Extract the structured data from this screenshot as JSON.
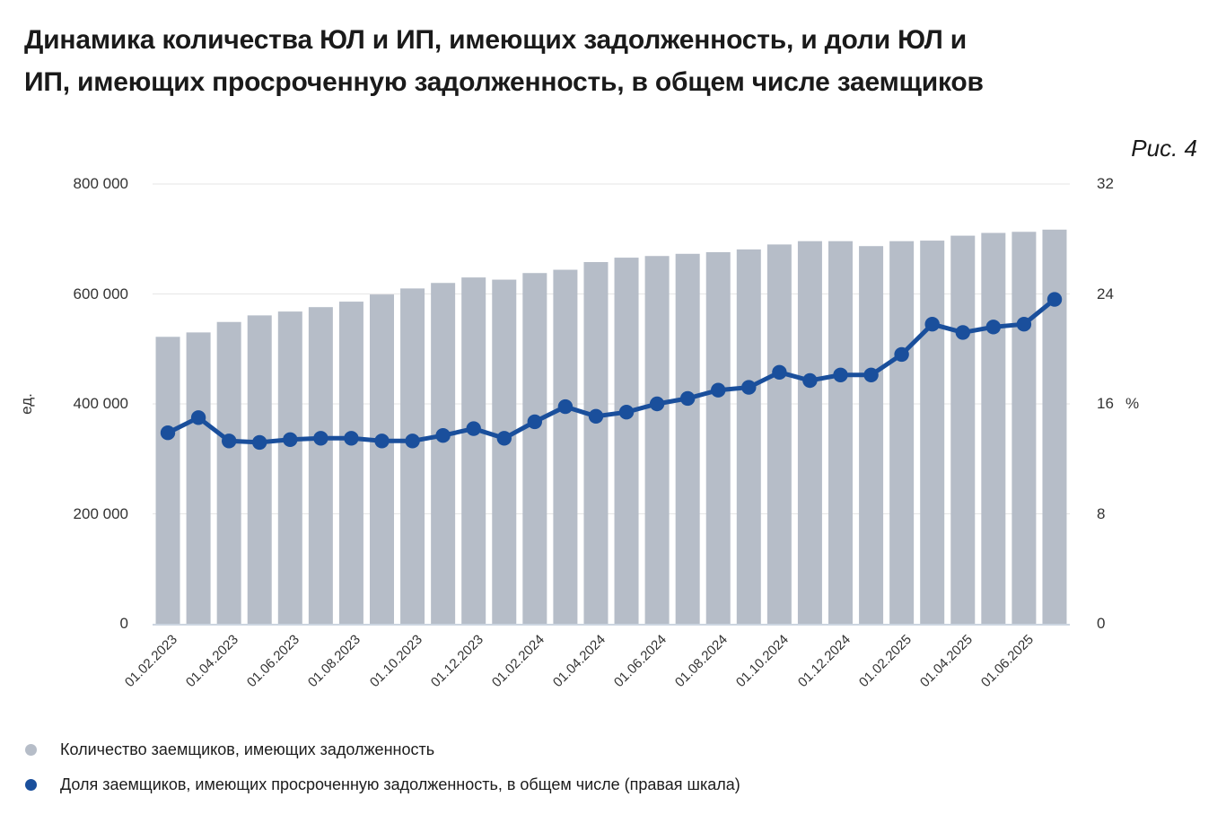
{
  "title": "Динамика количества ЮЛ и ИП, имеющих задолженность, и доли ЮЛ и\nИП, имеющих просроченную задолженность, в общем числе заемщиков",
  "figure_label": "Рис. 4",
  "chart_data": {
    "type": "bar+line",
    "title": "Динамика количества ЮЛ и ИП, имеющих задолженность, и доли ЮЛ и ИП, имеющих просроченную задолженность, в общем числе заемщиков",
    "categories": [
      "01.02.2023",
      "01.03.2023",
      "01.04.2023",
      "01.05.2023",
      "01.06.2023",
      "01.07.2023",
      "01.08.2023",
      "01.09.2023",
      "01.10.2023",
      "01.11.2023",
      "01.12.2023",
      "01.01.2024",
      "01.02.2024",
      "01.03.2024",
      "01.04.2024",
      "01.05.2024",
      "01.06.2024",
      "01.07.2024",
      "01.08.2024",
      "01.09.2024",
      "01.10.2024",
      "01.11.2024",
      "01.12.2024",
      "01.01.2025",
      "01.02.2025",
      "01.03.2025",
      "01.04.2025",
      "01.05.2025",
      "01.06.2025",
      "01.07.2025"
    ],
    "x_tick_labels": [
      "01.02.2023",
      "01.04.2023",
      "01.06.2023",
      "01.08.2023",
      "01.10.2023",
      "01.12.2023",
      "01.02.2024",
      "01.04.2024",
      "01.06.2024",
      "01.08.2024",
      "01.10.2024",
      "01.12.2024",
      "01.02.2025",
      "01.04.2025",
      "01.06.2025"
    ],
    "series": [
      {
        "name": "Количество заемщиков, имеющих задолженность",
        "type": "bar",
        "axis": "left",
        "color": "#b6bdc8",
        "values": [
          522000,
          530000,
          549000,
          561000,
          568000,
          576000,
          586000,
          599000,
          610000,
          620000,
          630000,
          626000,
          638000,
          644000,
          658000,
          666000,
          669000,
          673000,
          676000,
          681000,
          690000,
          696000,
          696000,
          687000,
          696000,
          697000,
          706000,
          711000,
          713000,
          717000
        ]
      },
      {
        "name": "Доля заемщиков, имеющих просроченную задолженность, в общем числе (правая шкала)",
        "type": "line",
        "axis": "right",
        "color": "#1a4f9c",
        "values": [
          13.9,
          15.0,
          13.3,
          13.2,
          13.4,
          13.5,
          13.5,
          13.3,
          13.3,
          13.7,
          14.2,
          13.5,
          14.7,
          15.8,
          15.1,
          15.4,
          16.0,
          16.4,
          17.0,
          17.2,
          18.3,
          17.7,
          18.1,
          18.1,
          19.6,
          21.8,
          21.2,
          21.6,
          21.8,
          23.6
        ]
      }
    ],
    "left_axis": {
      "unit": "ед.",
      "min": 0,
      "max": 800000,
      "tick_values": [
        0,
        200000,
        400000,
        600000,
        800000
      ],
      "tick_labels": [
        "0",
        "200 000",
        "400 000",
        "600 000",
        "800 000"
      ]
    },
    "right_axis": {
      "unit": "%",
      "min": 0,
      "max": 32,
      "tick_values": [
        0,
        8,
        16,
        24,
        32
      ],
      "tick_labels": [
        "0",
        "8",
        "16",
        "24",
        "32"
      ]
    },
    "grid": true,
    "legend_position": "bottom-left",
    "colors": {
      "bar": "#b6bdc8",
      "line": "#1a4f9c",
      "gridline": "#e6e6e6",
      "axis_line": "#ccd5e0",
      "text": "#1a1a1a"
    }
  }
}
